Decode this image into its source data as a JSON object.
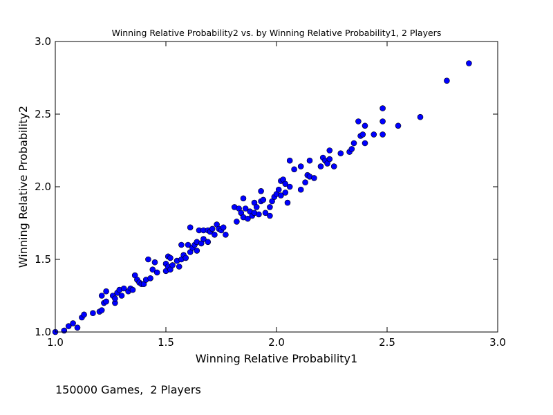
{
  "chart_data": {
    "type": "scatter",
    "title": "Winning Relative Probability2 vs. by Winning Relative Probability1, 2 Players",
    "xlabel": "Winning Relative Probability1",
    "ylabel": "Winning Relative Probability2",
    "xlim": [
      1.0,
      3.0
    ],
    "ylim": [
      1.0,
      3.0
    ],
    "xticks": [
      "1.0",
      "1.5",
      "2.0",
      "2.5",
      "3.0"
    ],
    "yticks": [
      "1.0",
      "1.5",
      "2.0",
      "2.5",
      "3.0"
    ],
    "grid": false,
    "legend": "none",
    "marker_color": "#0000ff",
    "points": [
      [
        1.0,
        1.0
      ],
      [
        1.04,
        1.01
      ],
      [
        1.06,
        1.04
      ],
      [
        1.08,
        1.06
      ],
      [
        1.1,
        1.03
      ],
      [
        1.12,
        1.1
      ],
      [
        1.13,
        1.12
      ],
      [
        1.17,
        1.13
      ],
      [
        1.2,
        1.14
      ],
      [
        1.21,
        1.15
      ],
      [
        1.21,
        1.25
      ],
      [
        1.22,
        1.2
      ],
      [
        1.23,
        1.28
      ],
      [
        1.23,
        1.21
      ],
      [
        1.26,
        1.25
      ],
      [
        1.27,
        1.2
      ],
      [
        1.27,
        1.23
      ],
      [
        1.28,
        1.27
      ],
      [
        1.29,
        1.29
      ],
      [
        1.3,
        1.25
      ],
      [
        1.31,
        1.3
      ],
      [
        1.33,
        1.28
      ],
      [
        1.34,
        1.3
      ],
      [
        1.35,
        1.29
      ],
      [
        1.36,
        1.39
      ],
      [
        1.37,
        1.36
      ],
      [
        1.38,
        1.34
      ],
      [
        1.39,
        1.33
      ],
      [
        1.4,
        1.33
      ],
      [
        1.41,
        1.36
      ],
      [
        1.42,
        1.5
      ],
      [
        1.43,
        1.37
      ],
      [
        1.44,
        1.43
      ],
      [
        1.45,
        1.48
      ],
      [
        1.46,
        1.41
      ],
      [
        1.5,
        1.47
      ],
      [
        1.5,
        1.42
      ],
      [
        1.51,
        1.52
      ],
      [
        1.51,
        1.45
      ],
      [
        1.52,
        1.43
      ],
      [
        1.52,
        1.51
      ],
      [
        1.53,
        1.46
      ],
      [
        1.55,
        1.49
      ],
      [
        1.56,
        1.45
      ],
      [
        1.57,
        1.5
      ],
      [
        1.57,
        1.6
      ],
      [
        1.58,
        1.53
      ],
      [
        1.59,
        1.51
      ],
      [
        1.6,
        1.6
      ],
      [
        1.61,
        1.72
      ],
      [
        1.61,
        1.55
      ],
      [
        1.62,
        1.58
      ],
      [
        1.63,
        1.6
      ],
      [
        1.64,
        1.62
      ],
      [
        1.64,
        1.56
      ],
      [
        1.65,
        1.7
      ],
      [
        1.66,
        1.61
      ],
      [
        1.67,
        1.64
      ],
      [
        1.67,
        1.7
      ],
      [
        1.69,
        1.62
      ],
      [
        1.69,
        1.7
      ],
      [
        1.7,
        1.69
      ],
      [
        1.71,
        1.71
      ],
      [
        1.72,
        1.67
      ],
      [
        1.73,
        1.74
      ],
      [
        1.74,
        1.71
      ],
      [
        1.75,
        1.7
      ],
      [
        1.76,
        1.72
      ],
      [
        1.77,
        1.67
      ],
      [
        1.81,
        1.86
      ],
      [
        1.82,
        1.76
      ],
      [
        1.83,
        1.85
      ],
      [
        1.84,
        1.82
      ],
      [
        1.85,
        1.92
      ],
      [
        1.85,
        1.79
      ],
      [
        1.86,
        1.85
      ],
      [
        1.87,
        1.78
      ],
      [
        1.88,
        1.83
      ],
      [
        1.89,
        1.8
      ],
      [
        1.9,
        1.89
      ],
      [
        1.9,
        1.82
      ],
      [
        1.91,
        1.86
      ],
      [
        1.92,
        1.81
      ],
      [
        1.93,
        1.97
      ],
      [
        1.93,
        1.9
      ],
      [
        1.94,
        1.91
      ],
      [
        1.95,
        1.82
      ],
      [
        1.97,
        1.86
      ],
      [
        1.97,
        1.8
      ],
      [
        1.98,
        1.9
      ],
      [
        1.99,
        1.93
      ],
      [
        2.0,
        1.95
      ],
      [
        2.01,
        1.98
      ],
      [
        2.02,
        2.04
      ],
      [
        2.02,
        1.94
      ],
      [
        2.03,
        2.05
      ],
      [
        2.04,
        1.96
      ],
      [
        2.04,
        2.02
      ],
      [
        2.05,
        1.89
      ],
      [
        2.06,
        2.0
      ],
      [
        2.06,
        2.18
      ],
      [
        2.08,
        2.12
      ],
      [
        2.11,
        2.14
      ],
      [
        2.11,
        1.98
      ],
      [
        2.13,
        2.03
      ],
      [
        2.14,
        2.08
      ],
      [
        2.15,
        2.18
      ],
      [
        2.15,
        2.07
      ],
      [
        2.17,
        2.06
      ],
      [
        2.2,
        2.14
      ],
      [
        2.21,
        2.2
      ],
      [
        2.22,
        2.18
      ],
      [
        2.23,
        2.16
      ],
      [
        2.24,
        2.25
      ],
      [
        2.24,
        2.19
      ],
      [
        2.26,
        2.14
      ],
      [
        2.29,
        2.23
      ],
      [
        2.33,
        2.24
      ],
      [
        2.34,
        2.26
      ],
      [
        2.35,
        2.3
      ],
      [
        2.37,
        2.45
      ],
      [
        2.38,
        2.35
      ],
      [
        2.39,
        2.36
      ],
      [
        2.4,
        2.3
      ],
      [
        2.4,
        2.42
      ],
      [
        2.44,
        2.36
      ],
      [
        2.48,
        2.54
      ],
      [
        2.48,
        2.45
      ],
      [
        2.48,
        2.36
      ],
      [
        2.55,
        2.42
      ],
      [
        2.65,
        2.48
      ],
      [
        2.77,
        2.73
      ],
      [
        2.87,
        2.85
      ]
    ]
  },
  "caption": "150000 Games,  2 Players"
}
